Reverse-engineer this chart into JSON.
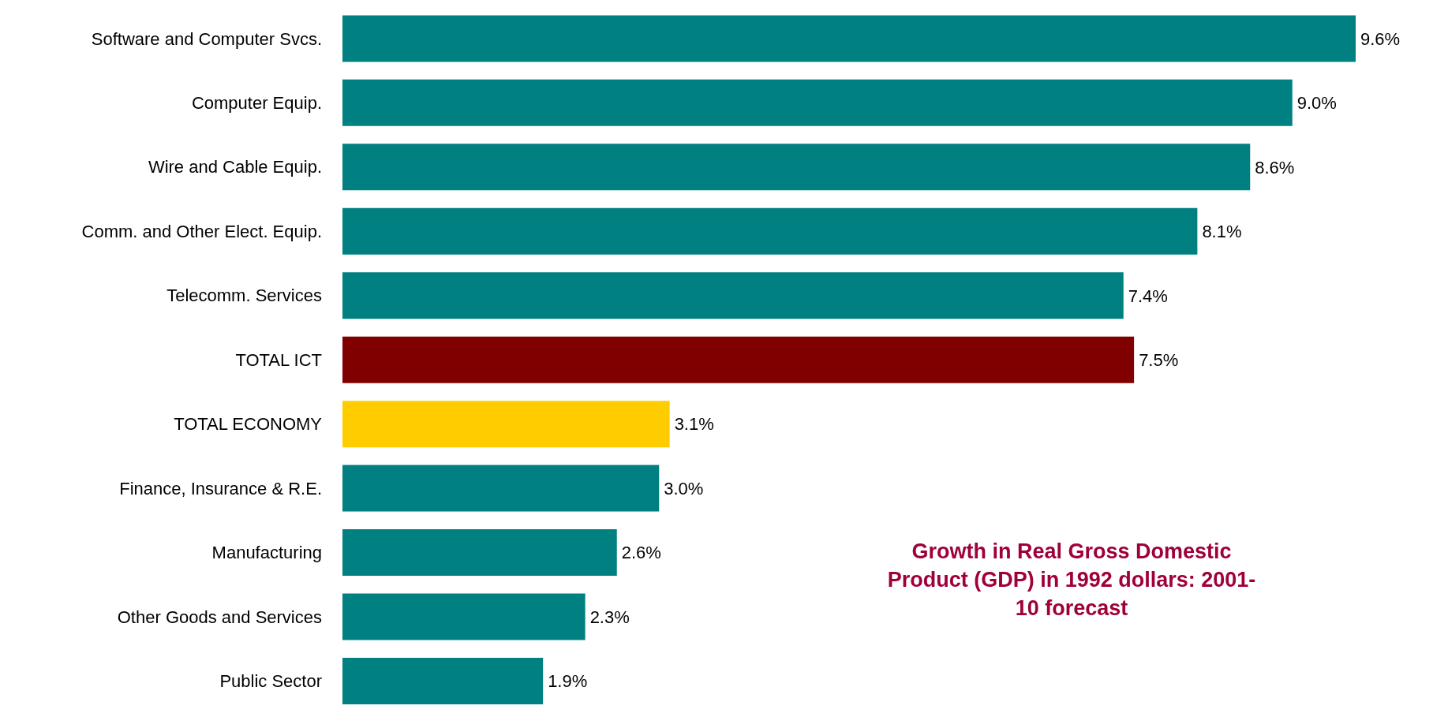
{
  "chart_data": {
    "type": "bar",
    "orientation": "horizontal",
    "title": "Growth in Real Gross Domestic Product (GDP) in 1992 dollars: 2001-10 forecast",
    "categories": [
      "Software and Computer Svcs.",
      "Computer Equip.",
      "Wire and Cable Equip.",
      "Comm. and Other Elect. Equip.",
      "Telecomm. Services",
      "TOTAL ICT",
      "TOTAL ECONOMY",
      "Finance, Insurance & R.E.",
      "Manufacturing",
      "Other Goods and Services",
      "Public Sector"
    ],
    "values": [
      9.6,
      9.0,
      8.6,
      8.1,
      7.4,
      7.5,
      3.1,
      3.0,
      2.6,
      2.3,
      1.9
    ],
    "colors": [
      "#008080",
      "#008080",
      "#008080",
      "#008080",
      "#008080",
      "#800000",
      "#ffcc00",
      "#008080",
      "#008080",
      "#008080",
      "#008080"
    ],
    "value_labels": [
      "9.6%",
      "9.0%",
      "8.6%",
      "8.1%",
      "7.4%",
      "7.5%",
      "3.1%",
      "3.0%",
      "2.6%",
      "2.3%",
      "1.9%"
    ],
    "grid": false,
    "legend": false
  }
}
